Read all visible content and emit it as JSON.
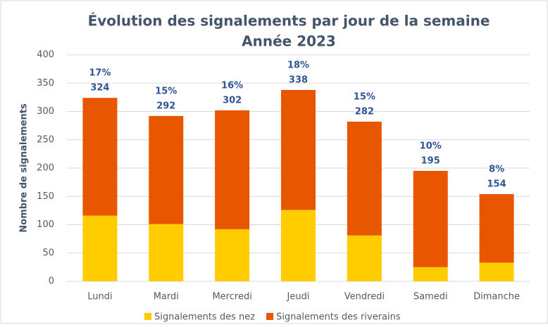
{
  "chart_data": {
    "type": "stacked_bar",
    "title": "Évolution des signalements par jour de la semaine",
    "subtitle": "Année 2023",
    "ylabel": "Nombre de signalements",
    "categories": [
      "Lundi",
      "Mardi",
      "Mercredi",
      "Jeudi",
      "Vendredi",
      "Samedi",
      "Dimanche"
    ],
    "series": [
      {
        "name": "Signalements des nez",
        "color": "#ffcc00",
        "values": [
          116,
          101,
          92,
          126,
          81,
          25,
          33
        ]
      },
      {
        "name": "Signalements des riverains",
        "color": "#e85600",
        "values": [
          208,
          191,
          210,
          212,
          201,
          170,
          121
        ]
      }
    ],
    "totals": [
      324,
      292,
      302,
      338,
      282,
      195,
      154
    ],
    "percent_values": [
      17,
      15,
      16,
      18,
      15,
      10,
      8
    ],
    "percent_labels": [
      "17%",
      "15%",
      "16%",
      "18%",
      "15%",
      "10%",
      "8%"
    ],
    "ylim": [
      0,
      400
    ],
    "yticks": [
      0,
      50,
      100,
      150,
      200,
      250,
      300,
      350,
      400
    ],
    "grid": true
  }
}
